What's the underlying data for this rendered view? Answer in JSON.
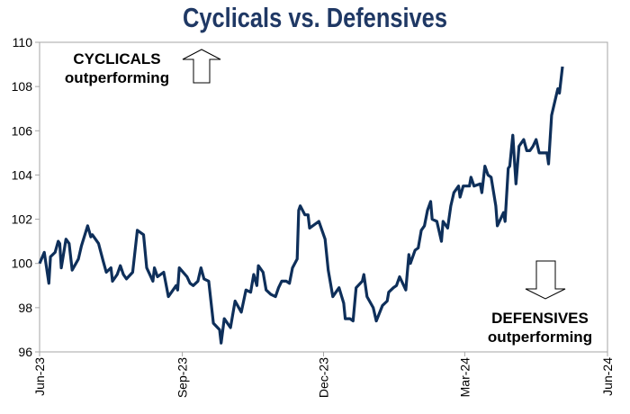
{
  "chart_data": {
    "type": "line",
    "title": "Cyclicals vs. Defensives",
    "xlabel": "",
    "ylabel": "",
    "xlim": [
      "2023-06-01",
      "2024-06-01"
    ],
    "ylim": [
      96,
      110
    ],
    "x_ticks": [
      {
        "date": "2023-06-01",
        "label": "Jun-23"
      },
      {
        "date": "2023-09-01",
        "label": "Sep-23"
      },
      {
        "date": "2023-12-01",
        "label": "Dec-23"
      },
      {
        "date": "2024-03-01",
        "label": "Mar-24"
      },
      {
        "date": "2024-06-01",
        "label": "Jun-24"
      }
    ],
    "y_ticks": [
      96,
      98,
      100,
      102,
      104,
      106,
      108,
      110
    ],
    "grid": false,
    "line_color": "#0e2f5a",
    "annotations": {
      "top": {
        "line1": "CYCLICALS",
        "line2": "outperforming",
        "arrow": "up-arrow"
      },
      "bottom": {
        "line1": "DEFENSIVES",
        "line2": "outperforming",
        "arrow": "down-arrow"
      }
    },
    "series": [
      {
        "points": [
          [
            "2023-06-01",
            100.0
          ],
          [
            "2023-06-04",
            100.5
          ],
          [
            "2023-06-07",
            99.1
          ],
          [
            "2023-06-08",
            100.3
          ],
          [
            "2023-06-11",
            100.5
          ],
          [
            "2023-06-13",
            101.0
          ],
          [
            "2023-06-14",
            100.9
          ],
          [
            "2023-06-15",
            99.8
          ],
          [
            "2023-06-18",
            101.1
          ],
          [
            "2023-06-20",
            100.9
          ],
          [
            "2023-06-22",
            99.7
          ],
          [
            "2023-06-26",
            100.2
          ],
          [
            "2023-06-28",
            100.8
          ],
          [
            "2023-07-02",
            101.7
          ],
          [
            "2023-07-04",
            101.2
          ],
          [
            "2023-07-05",
            101.3
          ],
          [
            "2023-07-09",
            100.9
          ],
          [
            "2023-07-12",
            100.1
          ],
          [
            "2023-07-14",
            99.6
          ],
          [
            "2023-07-17",
            99.8
          ],
          [
            "2023-07-18",
            99.2
          ],
          [
            "2023-07-21",
            99.5
          ],
          [
            "2023-07-23",
            99.9
          ],
          [
            "2023-07-25",
            99.5
          ],
          [
            "2023-07-27",
            99.3
          ],
          [
            "2023-07-31",
            99.6
          ],
          [
            "2023-08-03",
            101.5
          ],
          [
            "2023-08-07",
            101.3
          ],
          [
            "2023-08-09",
            99.8
          ],
          [
            "2023-08-13",
            99.2
          ],
          [
            "2023-08-14",
            99.8
          ],
          [
            "2023-08-16",
            99.4
          ],
          [
            "2023-08-20",
            99.6
          ],
          [
            "2023-08-23",
            98.5
          ],
          [
            "2023-08-28",
            99.0
          ],
          [
            "2023-08-29",
            98.8
          ],
          [
            "2023-08-30",
            99.8
          ],
          [
            "2023-09-04",
            99.4
          ],
          [
            "2023-09-06",
            99.1
          ],
          [
            "2023-09-08",
            99.0
          ],
          [
            "2023-09-11",
            99.2
          ],
          [
            "2023-09-13",
            99.8
          ],
          [
            "2023-09-15",
            99.3
          ],
          [
            "2023-09-18",
            99.2
          ],
          [
            "2023-09-21",
            97.3
          ],
          [
            "2023-09-25",
            97.0
          ],
          [
            "2023-09-26",
            96.4
          ],
          [
            "2023-09-28",
            97.5
          ],
          [
            "2023-10-02",
            97.1
          ],
          [
            "2023-10-05",
            98.3
          ],
          [
            "2023-10-09",
            97.8
          ],
          [
            "2023-10-12",
            98.8
          ],
          [
            "2023-10-15",
            98.7
          ],
          [
            "2023-10-17",
            99.5
          ],
          [
            "2023-10-19",
            99.0
          ],
          [
            "2023-10-20",
            99.9
          ],
          [
            "2023-10-23",
            99.6
          ],
          [
            "2023-10-25",
            98.8
          ],
          [
            "2023-10-28",
            98.6
          ],
          [
            "2023-10-31",
            98.5
          ],
          [
            "2023-11-02",
            98.9
          ],
          [
            "2023-11-04",
            99.2
          ],
          [
            "2023-11-07",
            99.2
          ],
          [
            "2023-11-09",
            99.1
          ],
          [
            "2023-11-11",
            99.8
          ],
          [
            "2023-11-14",
            100.2
          ],
          [
            "2023-11-15",
            102.4
          ],
          [
            "2023-11-16",
            102.6
          ],
          [
            "2023-11-19",
            102.2
          ],
          [
            "2023-11-21",
            102.2
          ],
          [
            "2023-11-22",
            101.6
          ],
          [
            "2023-11-28",
            101.9
          ],
          [
            "2023-12-02",
            101.1
          ],
          [
            "2023-12-04",
            99.7
          ],
          [
            "2023-12-07",
            98.5
          ],
          [
            "2023-12-11",
            98.9
          ],
          [
            "2023-12-14",
            98.2
          ],
          [
            "2023-12-15",
            97.5
          ],
          [
            "2023-12-18",
            97.5
          ],
          [
            "2023-12-20",
            97.4
          ],
          [
            "2023-12-22",
            98.9
          ],
          [
            "2023-12-26",
            99.2
          ],
          [
            "2023-12-27",
            99.5
          ],
          [
            "2023-12-29",
            98.5
          ],
          [
            "2024-01-02",
            98.0
          ],
          [
            "2024-01-04",
            97.4
          ],
          [
            "2024-01-08",
            98.1
          ],
          [
            "2024-01-11",
            98.3
          ],
          [
            "2024-01-12",
            98.7
          ],
          [
            "2024-01-15",
            98.9
          ],
          [
            "2024-01-17",
            99.0
          ],
          [
            "2024-01-19",
            99.4
          ],
          [
            "2024-01-23",
            98.8
          ],
          [
            "2024-01-25",
            100.4
          ],
          [
            "2024-01-26",
            100.0
          ],
          [
            "2024-01-29",
            100.6
          ],
          [
            "2024-01-31",
            100.7
          ],
          [
            "2024-02-02",
            101.5
          ],
          [
            "2024-02-04",
            101.7
          ],
          [
            "2024-02-06",
            102.4
          ],
          [
            "2024-02-08",
            102.8
          ],
          [
            "2024-02-09",
            102.0
          ],
          [
            "2024-02-12",
            101.9
          ],
          [
            "2024-02-15",
            101.0
          ],
          [
            "2024-02-16",
            101.9
          ],
          [
            "2024-02-19",
            101.6
          ],
          [
            "2024-02-21",
            102.6
          ],
          [
            "2024-02-23",
            103.2
          ],
          [
            "2024-02-26",
            103.5
          ],
          [
            "2024-02-27",
            103.0
          ],
          [
            "2024-02-29",
            103.5
          ],
          [
            "2024-03-04",
            103.5
          ],
          [
            "2024-03-05",
            103.9
          ],
          [
            "2024-03-07",
            103.5
          ],
          [
            "2024-03-11",
            103.6
          ],
          [
            "2024-03-12",
            103.2
          ],
          [
            "2024-03-14",
            104.4
          ],
          [
            "2024-03-16",
            104.0
          ],
          [
            "2024-03-18",
            103.9
          ],
          [
            "2024-03-21",
            102.6
          ],
          [
            "2024-03-22",
            101.7
          ],
          [
            "2024-03-26",
            102.3
          ],
          [
            "2024-03-27",
            101.9
          ],
          [
            "2024-03-29",
            104.3
          ],
          [
            "2024-03-30",
            104.4
          ],
          [
            "2024-04-01",
            105.8
          ],
          [
            "2024-04-03",
            103.6
          ],
          [
            "2024-04-05",
            105.3
          ],
          [
            "2024-04-08",
            105.6
          ],
          [
            "2024-04-10",
            105.1
          ],
          [
            "2024-04-12",
            105.1
          ],
          [
            "2024-04-14",
            105.3
          ],
          [
            "2024-04-16",
            105.6
          ],
          [
            "2024-04-18",
            105.0
          ],
          [
            "2024-04-23",
            105.0
          ],
          [
            "2024-04-24",
            104.5
          ],
          [
            "2024-04-26",
            106.7
          ],
          [
            "2024-04-30",
            107.9
          ],
          [
            "2024-05-01",
            107.7
          ],
          [
            "2024-05-03",
            108.9
          ]
        ]
      }
    ]
  }
}
